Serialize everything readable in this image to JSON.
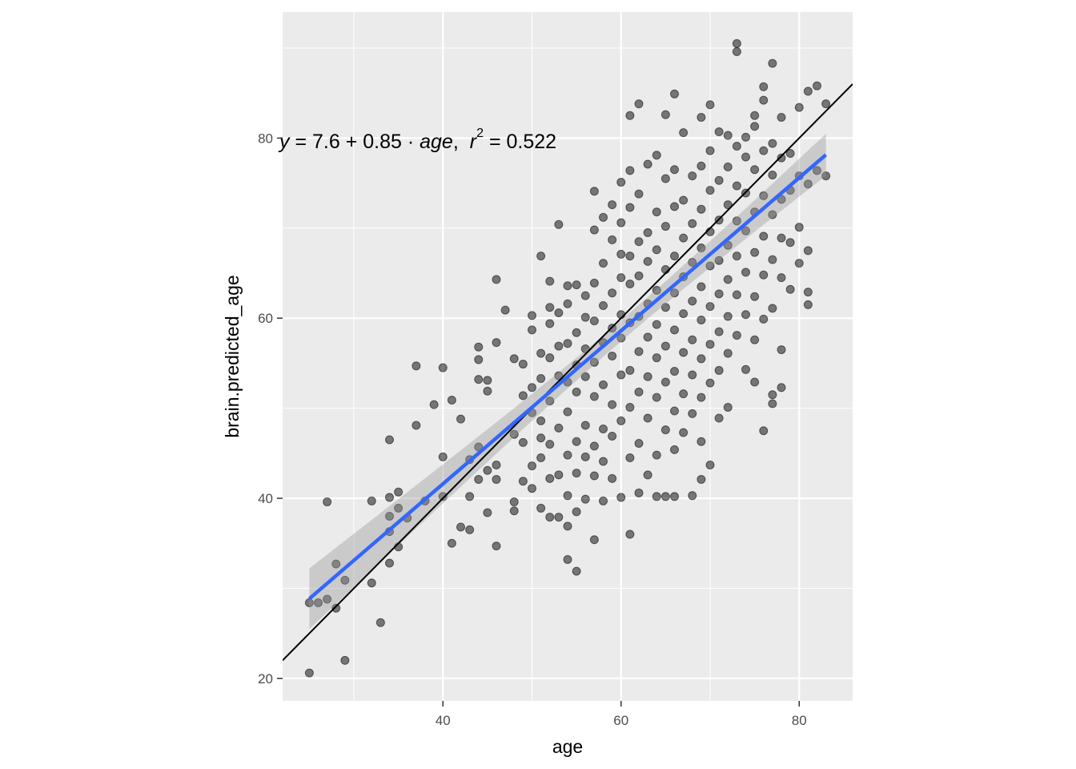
{
  "chart_data": {
    "type": "scatter",
    "xlabel": "age",
    "ylabel": "brain.predicted_age",
    "xlim": [
      22,
      86
    ],
    "ylim": [
      17.5,
      94
    ],
    "x_ticks": [
      40,
      60,
      80
    ],
    "y_ticks": [
      20,
      40,
      60,
      80
    ],
    "x_tick_labels": [
      "40",
      "60",
      "80"
    ],
    "y_tick_labels": [
      "20",
      "40",
      "60",
      "80"
    ],
    "annotation": {
      "text": "y = 7.6 + 0.85 · age,  r² = 0.522",
      "eq_y": "y",
      "eq_eq1": " = 7.6 + 0.85 · ",
      "eq_age": "age",
      "eq_comma": ",",
      "eq_r": "r",
      "eq_exp": "2",
      "eq_val": " = 0.522",
      "x": 22,
      "y": 79.5
    },
    "regression": {
      "intercept": 7.6,
      "slope": 0.85,
      "x_range": [
        25,
        83
      ],
      "color": "#3366FF",
      "band_color": "#999999"
    },
    "identity_line": {
      "intercept": 0,
      "slope": 1,
      "color": "#000000"
    },
    "point_color": "#000000",
    "panel_background": "#EBEBEB",
    "grid_color": "#FFFFFF",
    "points": [
      [
        25,
        20.6
      ],
      [
        25,
        28.4
      ],
      [
        26,
        28.4
      ],
      [
        27,
        28.8
      ],
      [
        27,
        39.6
      ],
      [
        28,
        27.8
      ],
      [
        28,
        32.7
      ],
      [
        29,
        22
      ],
      [
        29,
        30.9
      ],
      [
        32,
        30.6
      ],
      [
        32,
        39.7
      ],
      [
        33,
        26.2
      ],
      [
        34,
        32.8
      ],
      [
        34,
        36.3
      ],
      [
        34,
        38
      ],
      [
        34,
        40.1
      ],
      [
        34,
        46.5
      ],
      [
        35,
        34.6
      ],
      [
        35,
        40.7
      ],
      [
        35,
        38.9
      ],
      [
        36,
        37.8
      ],
      [
        37,
        48.1
      ],
      [
        37,
        54.7
      ],
      [
        38,
        39.7
      ],
      [
        39,
        50.4
      ],
      [
        40,
        40.2
      ],
      [
        40,
        44.6
      ],
      [
        40,
        54.5
      ],
      [
        41,
        35
      ],
      [
        41,
        50.9
      ],
      [
        42,
        36.8
      ],
      [
        42,
        48.8
      ],
      [
        43,
        36.5
      ],
      [
        43,
        40.2
      ],
      [
        43,
        44.3
      ],
      [
        44,
        42.1
      ],
      [
        44,
        45.7
      ],
      [
        44,
        53.2
      ],
      [
        44,
        55.4
      ],
      [
        44,
        56.8
      ],
      [
        45,
        38.4
      ],
      [
        45,
        43.1
      ],
      [
        45,
        51.9
      ],
      [
        45,
        53.1
      ],
      [
        46,
        34.7
      ],
      [
        46,
        42.1
      ],
      [
        46,
        43.7
      ],
      [
        46,
        57.3
      ],
      [
        46,
        64.3
      ],
      [
        47,
        60.9
      ],
      [
        48,
        38.6
      ],
      [
        48,
        39.6
      ],
      [
        48,
        47.1
      ],
      [
        48,
        55.5
      ],
      [
        49,
        41.9
      ],
      [
        49,
        46.2
      ],
      [
        49,
        51.4
      ],
      [
        49,
        54.9
      ],
      [
        50,
        41.1
      ],
      [
        50,
        43.6
      ],
      [
        50,
        49.5
      ],
      [
        50,
        52.3
      ],
      [
        50,
        58.7
      ],
      [
        50,
        60.3
      ],
      [
        51,
        38.9
      ],
      [
        51,
        44.5
      ],
      [
        51,
        46.7
      ],
      [
        51,
        48.6
      ],
      [
        51,
        53.3
      ],
      [
        51,
        56.1
      ],
      [
        51,
        66.9
      ],
      [
        52,
        37.9
      ],
      [
        52,
        42.2
      ],
      [
        52,
        46
      ],
      [
        52,
        50.8
      ],
      [
        52,
        55.6
      ],
      [
        52,
        59.4
      ],
      [
        52,
        61.2
      ],
      [
        52,
        64.1
      ],
      [
        53,
        37.9
      ],
      [
        53,
        42.6
      ],
      [
        53,
        47.8
      ],
      [
        53,
        53.6
      ],
      [
        53,
        56.9
      ],
      [
        53,
        60.6
      ],
      [
        53,
        70.4
      ],
      [
        54,
        33.2
      ],
      [
        54,
        36.9
      ],
      [
        54,
        40.3
      ],
      [
        54,
        44.8
      ],
      [
        54,
        49.6
      ],
      [
        54,
        52.9
      ],
      [
        54,
        57.2
      ],
      [
        54,
        61.6
      ],
      [
        54,
        63.6
      ],
      [
        55,
        31.9
      ],
      [
        55,
        38.5
      ],
      [
        55,
        42.8
      ],
      [
        55,
        46.3
      ],
      [
        55,
        51.8
      ],
      [
        55,
        54.8
      ],
      [
        55,
        58.4
      ],
      [
        55,
        63.7
      ],
      [
        56,
        39.9
      ],
      [
        56,
        44.6
      ],
      [
        56,
        48.1
      ],
      [
        56,
        53.5
      ],
      [
        56,
        56.6
      ],
      [
        56,
        60.1
      ],
      [
        56,
        62.5
      ],
      [
        57,
        35.4
      ],
      [
        57,
        42.5
      ],
      [
        57,
        45.8
      ],
      [
        57,
        51.3
      ],
      [
        57,
        55.1
      ],
      [
        57,
        59.7
      ],
      [
        57,
        63.9
      ],
      [
        57,
        69.8
      ],
      [
        57,
        74.1
      ],
      [
        58,
        39.7
      ],
      [
        58,
        44.1
      ],
      [
        58,
        47.7
      ],
      [
        58,
        52.6
      ],
      [
        58,
        57.3
      ],
      [
        58,
        61.4
      ],
      [
        58,
        66.1
      ],
      [
        58,
        71.2
      ],
      [
        59,
        42.2
      ],
      [
        59,
        46.9
      ],
      [
        59,
        50.4
      ],
      [
        59,
        55.8
      ],
      [
        59,
        58.9
      ],
      [
        59,
        62.8
      ],
      [
        59,
        68.7
      ],
      [
        59,
        72.6
      ],
      [
        60,
        40.1
      ],
      [
        60,
        48.6
      ],
      [
        60,
        53.7
      ],
      [
        60,
        57.8
      ],
      [
        60,
        60.4
      ],
      [
        60,
        64.5
      ],
      [
        60,
        67.1
      ],
      [
        60,
        70.6
      ],
      [
        60,
        75.1
      ],
      [
        61,
        36
      ],
      [
        61,
        44.5
      ],
      [
        61,
        50.1
      ],
      [
        61,
        54.2
      ],
      [
        61,
        59.5
      ],
      [
        61,
        63.8
      ],
      [
        61,
        66.9
      ],
      [
        61,
        72.3
      ],
      [
        61,
        76.4
      ],
      [
        61,
        82.5
      ],
      [
        62,
        40.6
      ],
      [
        62,
        46.1
      ],
      [
        62,
        51.8
      ],
      [
        62,
        56.3
      ],
      [
        62,
        60.2
      ],
      [
        62,
        64.7
      ],
      [
        62,
        68.5
      ],
      [
        62,
        73.8
      ],
      [
        62,
        83.8
      ],
      [
        63,
        42.6
      ],
      [
        63,
        48.9
      ],
      [
        63,
        53.5
      ],
      [
        63,
        57.9
      ],
      [
        63,
        61.6
      ],
      [
        63,
        66.3
      ],
      [
        63,
        69.5
      ],
      [
        63,
        77.1
      ],
      [
        64,
        40.2
      ],
      [
        64,
        44.8
      ],
      [
        64,
        51.2
      ],
      [
        64,
        55.6
      ],
      [
        64,
        59.3
      ],
      [
        64,
        63.1
      ],
      [
        64,
        67.6
      ],
      [
        64,
        71.8
      ],
      [
        64,
        78.1
      ],
      [
        65,
        40.2
      ],
      [
        65,
        47.6
      ],
      [
        65,
        52.9
      ],
      [
        65,
        56.9
      ],
      [
        65,
        61.2
      ],
      [
        65,
        65.4
      ],
      [
        65,
        70.2
      ],
      [
        65,
        75.5
      ],
      [
        65,
        82.6
      ],
      [
        66,
        40.2
      ],
      [
        66,
        45.4
      ],
      [
        66,
        49.7
      ],
      [
        66,
        54.1
      ],
      [
        66,
        58.7
      ],
      [
        66,
        62.8
      ],
      [
        66,
        66.9
      ],
      [
        66,
        72.4
      ],
      [
        66,
        76.5
      ],
      [
        66,
        84.9
      ],
      [
        67,
        47.3
      ],
      [
        67,
        51.6
      ],
      [
        67,
        56.2
      ],
      [
        67,
        60.5
      ],
      [
        67,
        64.6
      ],
      [
        67,
        68.9
      ],
      [
        67,
        73.1
      ],
      [
        67,
        80.6
      ],
      [
        68,
        40.3
      ],
      [
        68,
        49.4
      ],
      [
        68,
        53.7
      ],
      [
        68,
        57.6
      ],
      [
        68,
        61.9
      ],
      [
        68,
        66.2
      ],
      [
        68,
        70.5
      ],
      [
        68,
        75.8
      ],
      [
        69,
        42.1
      ],
      [
        69,
        46.3
      ],
      [
        69,
        51.2
      ],
      [
        69,
        55.5
      ],
      [
        69,
        59.8
      ],
      [
        69,
        63.5
      ],
      [
        69,
        67.8
      ],
      [
        69,
        72.1
      ],
      [
        69,
        76.9
      ],
      [
        69,
        82.3
      ],
      [
        70,
        43.7
      ],
      [
        70,
        52.8
      ],
      [
        70,
        57.1
      ],
      [
        70,
        61.3
      ],
      [
        70,
        65.8
      ],
      [
        70,
        69.6
      ],
      [
        70,
        74.2
      ],
      [
        70,
        78.6
      ],
      [
        70,
        83.7
      ],
      [
        71,
        48.9
      ],
      [
        71,
        54.2
      ],
      [
        71,
        58.5
      ],
      [
        71,
        62.7
      ],
      [
        71,
        66.4
      ],
      [
        71,
        70.9
      ],
      [
        71,
        75.3
      ],
      [
        71,
        80.7
      ],
      [
        72,
        50.1
      ],
      [
        72,
        56.1
      ],
      [
        72,
        60.2
      ],
      [
        72,
        64.3
      ],
      [
        72,
        68.1
      ],
      [
        72,
        72.6
      ],
      [
        72,
        76.8
      ],
      [
        72,
        80.3
      ],
      [
        73,
        58.1
      ],
      [
        73,
        62.6
      ],
      [
        73,
        66.9
      ],
      [
        73,
        70.8
      ],
      [
        73,
        74.7
      ],
      [
        73,
        79.1
      ],
      [
        73,
        89.6
      ],
      [
        73,
        90.5
      ],
      [
        74,
        54.3
      ],
      [
        74,
        60.4
      ],
      [
        74,
        65.1
      ],
      [
        74,
        69.7
      ],
      [
        74,
        73.9
      ],
      [
        74,
        77.9
      ],
      [
        74,
        80.1
      ],
      [
        75,
        52.9
      ],
      [
        75,
        57.6
      ],
      [
        75,
        62.4
      ],
      [
        75,
        67.3
      ],
      [
        75,
        71.8
      ],
      [
        75,
        76.5
      ],
      [
        75,
        81.3
      ],
      [
        75,
        82.5
      ],
      [
        76,
        47.5
      ],
      [
        76,
        59.9
      ],
      [
        76,
        64.8
      ],
      [
        76,
        69.1
      ],
      [
        76,
        73.6
      ],
      [
        76,
        78.6
      ],
      [
        76,
        84.2
      ],
      [
        76,
        85.7
      ],
      [
        77,
        51.5
      ],
      [
        77,
        50.5
      ],
      [
        77,
        61.1
      ],
      [
        77,
        66.5
      ],
      [
        77,
        71.5
      ],
      [
        77,
        75.9
      ],
      [
        77,
        79.4
      ],
      [
        77,
        88.3
      ],
      [
        78,
        56.5
      ],
      [
        78,
        52.3
      ],
      [
        78,
        64.5
      ],
      [
        78,
        68.9
      ],
      [
        78,
        73.2
      ],
      [
        78,
        77.8
      ],
      [
        78,
        82.3
      ],
      [
        79,
        63.2
      ],
      [
        79,
        68.4
      ],
      [
        79,
        74.2
      ],
      [
        79,
        78.3
      ],
      [
        80,
        66.1
      ],
      [
        80,
        70.1
      ],
      [
        80,
        75.8
      ],
      [
        80,
        83.4
      ],
      [
        81,
        61.5
      ],
      [
        81,
        62.9
      ],
      [
        81,
        67.5
      ],
      [
        81,
        74.9
      ],
      [
        81,
        85.2
      ],
      [
        82,
        76.4
      ],
      [
        82,
        85.8
      ],
      [
        83,
        75.8
      ],
      [
        83,
        83.8
      ]
    ]
  }
}
